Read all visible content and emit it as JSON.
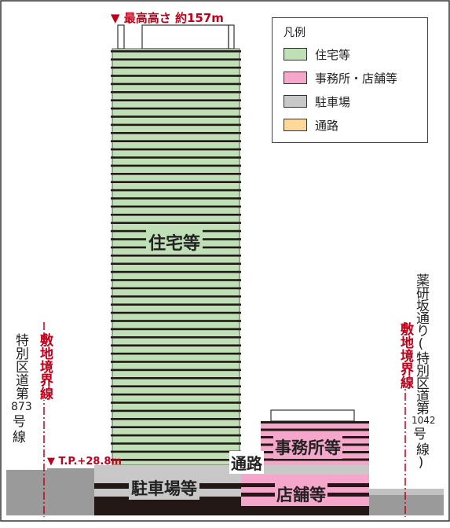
{
  "title_marker": "▼ 最高高さ 約157m",
  "tp_marker": "▼ T.P.+28.8m",
  "legend": {
    "title": "凡例",
    "items": [
      {
        "label": "住宅等",
        "color": "#bfe0b6"
      },
      {
        "label": "事務所・店舗等",
        "color": "#f4a6cb"
      },
      {
        "label": "駐車場",
        "color": "#c8c8c8"
      },
      {
        "label": "通路",
        "color": "#ffd89a"
      }
    ]
  },
  "labels": {
    "residential": "住宅等",
    "office": "事務所等",
    "shop": "店舗等",
    "passage": "通路",
    "parking": "駐車場等"
  },
  "left_boundary": "敷地境界線",
  "right_boundary": "敷地境界線",
  "left_road": {
    "line1": "特別区道第",
    "number": "873",
    "line3": "号",
    "line4": "線"
  },
  "right_road": {
    "line1": "薬研坂通り(特別区道第",
    "number": "1042",
    "line3": "号",
    "line4": "線)"
  },
  "colors": {
    "red": "#c0001a",
    "ground": "#9a9a9a",
    "dark": "#231815",
    "green": "#bfe0b6",
    "pink": "#f4a6cb",
    "gray": "#c8c8c8"
  }
}
